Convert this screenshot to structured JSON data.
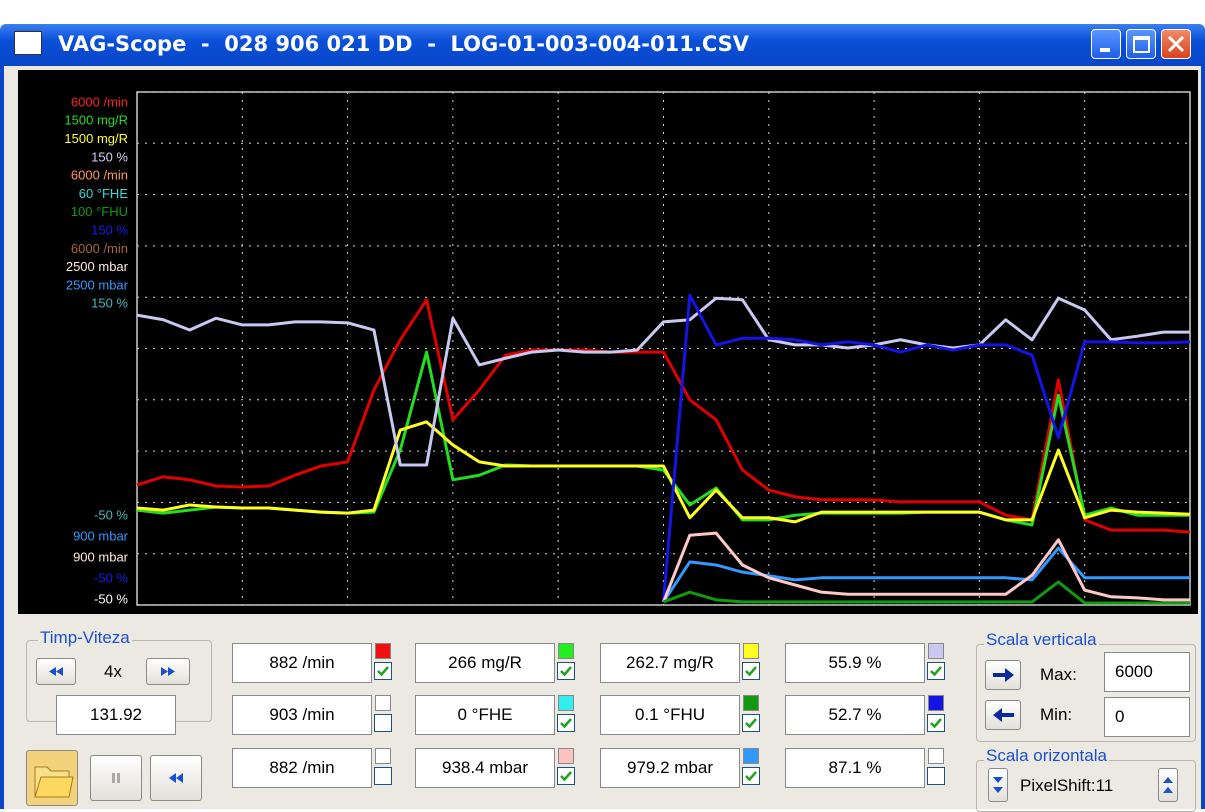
{
  "window": {
    "title": "VAG-Scope  -  028 906 021 DD  -  LOG-01-003-004-011.CSV"
  },
  "scope": {
    "type": "line",
    "scale_labels_top": [
      {
        "label": "6000 /min",
        "color": "#ff2020"
      },
      {
        "label": "1500 mg/R",
        "color": "#22dd22"
      },
      {
        "label": "1500 mg/R",
        "color": "#ffff33"
      },
      {
        "label": "150 %",
        "color": "#d0d0f0"
      },
      {
        "label": "6000 /min",
        "color": "#ff9955"
      },
      {
        "label": "60 °FHE",
        "color": "#33dddd"
      },
      {
        "label": "100 °FHU",
        "color": "#119911"
      },
      {
        "label": "150 %",
        "color": "#1a1aee"
      },
      {
        "label": "6000 /min",
        "color": "#aa6633"
      },
      {
        "label": "2500 mbar",
        "color": "#ffe8e0"
      },
      {
        "label": "2500 mbar",
        "color": "#3399ff"
      },
      {
        "label": "150 %",
        "color": "#44bbbb"
      }
    ],
    "scale_labels_bottom": [
      {
        "label": "-50 %",
        "color": "#44bbbb"
      },
      {
        "label": "900 mbar",
        "color": "#3399ff"
      },
      {
        "label": "900 mbar",
        "color": "#ffe8e0"
      },
      {
        "label": "-50 %",
        "color": "#1a1aee"
      },
      {
        "label": "-50 %",
        "color": "#ffffff"
      }
    ],
    "xlim": [
      0,
      100
    ],
    "ylim": [
      0,
      100
    ],
    "xticks": [
      0,
      10,
      20,
      30,
      40,
      50,
      60,
      70,
      80,
      90,
      100
    ],
    "yticks": [
      0,
      10,
      20,
      30,
      40,
      50,
      60,
      70,
      80,
      90,
      100
    ],
    "grid": true,
    "x": [
      0,
      2.5,
      5,
      7.5,
      10,
      12.5,
      15,
      17.5,
      20,
      22.5,
      25,
      27.5,
      30,
      32.5,
      35,
      37.5,
      40,
      42.5,
      45,
      47.5,
      50,
      52.5,
      55,
      57.5,
      60,
      62.5,
      65,
      67.5,
      70,
      72.5,
      75,
      77.5,
      80,
      82.5,
      85,
      87.5,
      90,
      92.5,
      95,
      97.5,
      100
    ],
    "series": [
      {
        "color": "#e00000",
        "values": [
          23.4,
          25,
          24.4,
          23.2,
          23,
          23.2,
          25.3,
          27.1,
          27.9,
          41.9,
          51.7,
          59.5,
          36.1,
          41.9,
          48.7,
          49.7,
          49.7,
          49.7,
          49.3,
          49.3,
          49.3,
          40,
          36.1,
          26.3,
          22.4,
          21.1,
          20.5,
          20.5,
          20.5,
          20.1,
          20.1,
          20.1,
          20.1,
          17.5,
          16.6,
          43.9,
          16.6,
          14.6,
          14.6,
          14.6,
          14.2
        ]
      },
      {
        "color": "#22dd22",
        "values": [
          18.5,
          17.9,
          18.5,
          19.1,
          18.9,
          18.9,
          18.5,
          18.1,
          17.9,
          18.1,
          30.2,
          49.3,
          24.4,
          25.3,
          27.3,
          27.1,
          27.1,
          27.1,
          27.1,
          27.1,
          26.3,
          19.5,
          22.8,
          16.6,
          16.6,
          17.5,
          17.9,
          17.9,
          17.9,
          17.9,
          18.1,
          18.1,
          18.1,
          16.6,
          15.6,
          40.9,
          17.5,
          18.9,
          17.5,
          17.5,
          17.5
        ]
      },
      {
        "color": "#ffff22",
        "values": [
          18.9,
          18.5,
          19.5,
          19.1,
          18.9,
          18.9,
          18.5,
          18.1,
          17.9,
          18.5,
          34.1,
          35.7,
          31.2,
          27.9,
          27.1,
          27.1,
          27.1,
          27.1,
          27.1,
          27.1,
          27.1,
          17,
          22.4,
          17,
          17,
          16.2,
          18.1,
          18.1,
          18.1,
          18.1,
          18.1,
          18.1,
          18.1,
          16.6,
          16.6,
          30.2,
          17,
          18.5,
          18.1,
          17.9,
          17.7
        ]
      },
      {
        "color": "#c8c8f0",
        "values": [
          56.5,
          55.6,
          53.6,
          55.9,
          54.6,
          54.6,
          55.2,
          55.2,
          55,
          53.6,
          27.3,
          27.3,
          55.9,
          46.8,
          48.1,
          49.3,
          49.7,
          49.3,
          49.3,
          49.7,
          55.2,
          55.6,
          59.8,
          59.5,
          51.7,
          50.7,
          50.7,
          50.1,
          50.7,
          51.7,
          50.7,
          50.1,
          50.7,
          55.6,
          51.7,
          59.8,
          57.5,
          51.7,
          52.4,
          53.2,
          53.2
        ]
      },
      {
        "color": "#1414e6",
        "values": [
          null,
          null,
          null,
          null,
          null,
          null,
          null,
          null,
          null,
          null,
          null,
          null,
          null,
          null,
          null,
          null,
          null,
          null,
          null,
          null,
          0.6,
          60.4,
          50.7,
          52,
          52,
          51.7,
          50.7,
          51.3,
          50.7,
          49.3,
          50.7,
          49.7,
          50.7,
          50.7,
          48.7,
          32.6,
          51.3,
          51.3,
          51.1,
          51.1,
          51.3
        ]
      },
      {
        "color": "#3399ff",
        "values": [
          null,
          null,
          null,
          null,
          null,
          null,
          null,
          null,
          null,
          null,
          null,
          null,
          null,
          null,
          null,
          null,
          null,
          null,
          null,
          null,
          0.6,
          8.4,
          7.8,
          6.4,
          5.7,
          4.9,
          5.3,
          5.3,
          5.3,
          5.3,
          5.3,
          5.3,
          5.3,
          5.3,
          4.9,
          11.1,
          5.3,
          5.3,
          5.3,
          5.3,
          5.3
        ]
      },
      {
        "color": "#ffc8c8",
        "values": [
          null,
          null,
          null,
          null,
          null,
          null,
          null,
          null,
          null,
          null,
          null,
          null,
          null,
          null,
          null,
          null,
          null,
          null,
          null,
          null,
          0.6,
          13.6,
          14,
          7.8,
          5.3,
          3.9,
          2.5,
          2.1,
          2.1,
          2.1,
          2.1,
          2.1,
          2.1,
          2.1,
          5.8,
          12.7,
          2.9,
          1.6,
          1.4,
          1,
          1
        ]
      },
      {
        "color": "#119911",
        "values": [
          null,
          null,
          null,
          null,
          null,
          null,
          null,
          null,
          null,
          null,
          null,
          null,
          null,
          null,
          null,
          null,
          null,
          null,
          null,
          null,
          0.6,
          2.5,
          1,
          0.6,
          0.6,
          0.6,
          0.6,
          0.6,
          0.6,
          0.6,
          0.6,
          0.6,
          0.6,
          0.6,
          0.6,
          4.5,
          0.4,
          0.4,
          0.4,
          0.4,
          0.4
        ]
      }
    ]
  },
  "controls": {
    "time_group": {
      "title": "Timp-Viteza",
      "speed": "4x",
      "time": "131.92"
    },
    "readouts": [
      [
        {
          "text": "882 /min",
          "color": "#ee1111",
          "checked": true
        },
        {
          "text": "266 mg/R",
          "color": "#22ee22",
          "checked": true
        },
        {
          "text": "262.7 mg/R",
          "color": "#ffff22",
          "checked": true
        },
        {
          "text": "55.9 %",
          "color": "#c8c8f0",
          "checked": true
        }
      ],
      [
        {
          "text": "903 /min",
          "color": null,
          "checked": false
        },
        {
          "text": "0 °FHE",
          "color": "#33eeee",
          "checked": true
        },
        {
          "text": "0.1 °FHU",
          "color": "#119911",
          "checked": true
        },
        {
          "text": "52.7 %",
          "color": "#1414e6",
          "checked": true
        }
      ],
      [
        {
          "text": "882 /min",
          "color": null,
          "checked": false
        },
        {
          "text": "938.4 mbar",
          "color": "#ffc0c0",
          "checked": true
        },
        {
          "text": "979.2 mbar",
          "color": "#3399ff",
          "checked": true
        },
        {
          "text": "87.1 %",
          "color": null,
          "checked": false
        }
      ]
    ],
    "vertical_scale": {
      "title": "Scala verticala",
      "max_label": "Max:",
      "max": "6000",
      "min_label": "Min:",
      "min": "0"
    },
    "horizontal_scale": {
      "title": "Scala orizontala",
      "shift": "PixelShift:11"
    }
  }
}
